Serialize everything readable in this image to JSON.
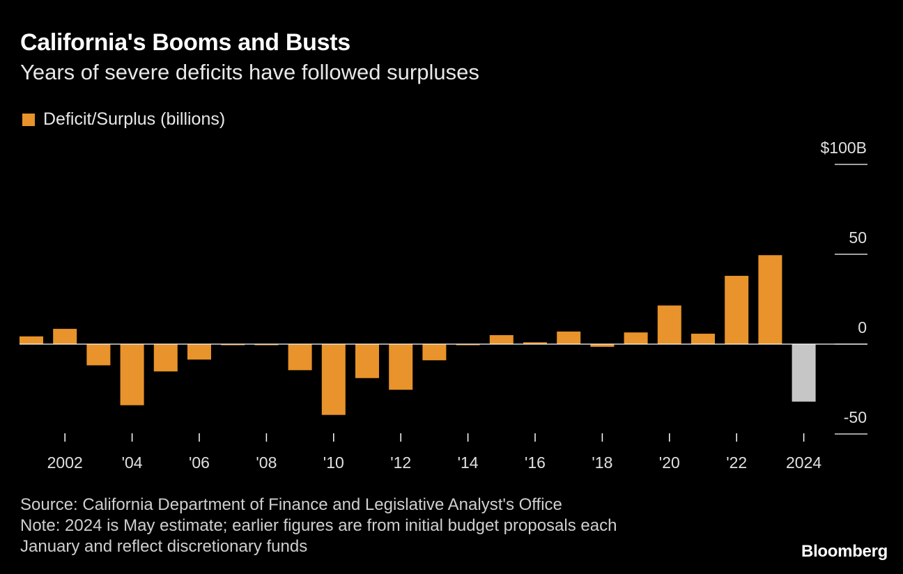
{
  "header": {
    "title": "California's Booms and Busts",
    "subtitle": "Years of severe deficits have followed surpluses"
  },
  "legend": {
    "label": "Deficit/Surplus (billions)"
  },
  "colors": {
    "bar": "#e8932b",
    "estimate_bar": "#c6c6c6",
    "axis": "#ffffff"
  },
  "chart_data": {
    "type": "bar",
    "title": "California's Booms and Busts",
    "subtitle": "Years of severe deficits have followed surpluses",
    "xlabel": "",
    "ylabel": "Deficit/Surplus (billions)",
    "ylim": [
      -50,
      100
    ],
    "y_ticks": [
      100,
      50,
      0,
      -50
    ],
    "y_tick_labels": [
      "$100B",
      "50",
      "0",
      "-50"
    ],
    "categories": [
      2001,
      2002,
      2003,
      2004,
      2005,
      2006,
      2007,
      2008,
      2009,
      2010,
      2011,
      2012,
      2013,
      2014,
      2015,
      2016,
      2017,
      2018,
      2019,
      2020,
      2021,
      2022,
      2023,
      2024
    ],
    "x_ticks": [
      2002,
      2004,
      2006,
      2008,
      2010,
      2012,
      2014,
      2016,
      2018,
      2020,
      2022,
      2024
    ],
    "x_tick_labels": [
      "2002",
      "'04",
      "'06",
      "'08",
      "'10",
      "'12",
      "'14",
      "'16",
      "'18",
      "'20",
      "'22",
      "2024"
    ],
    "series": [
      {
        "name": "Deficit/Surplus (billions)",
        "values": [
          4.3,
          8.5,
          -11.8,
          -34,
          -15.2,
          -8.6,
          -0.5,
          -0.5,
          -14.5,
          -39.4,
          -18.9,
          -25.4,
          -9,
          -0.5,
          5,
          1,
          7,
          -1.5,
          6.5,
          21.5,
          5.8,
          38,
          49.5,
          -32
        ]
      }
    ],
    "estimate_categories": [
      2024
    ]
  },
  "footer": {
    "source": "Source: California Department of Finance and Legislative Analyst's Office",
    "note_line1": "Note: 2024 is May estimate; earlier figures are from initial budget proposals each",
    "note_line2": "January and reflect discretionary funds"
  },
  "brand": "Bloomberg"
}
